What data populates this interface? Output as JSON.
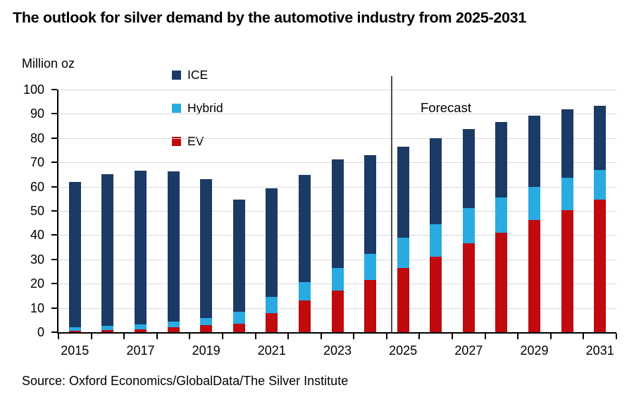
{
  "page": {
    "title": "The outlook for silver demand by the automotive industry from 2025-2031",
    "source": "Source: Oxford Economics/GlobalData/The Silver Institute"
  },
  "chart_data": {
    "type": "bar",
    "stacked": true,
    "title": "The outlook for silver demand by the automotive industry from 2025-2031",
    "unit_label": "Million oz",
    "xlabel": "",
    "ylabel": "Million oz",
    "ylim": [
      0,
      100
    ],
    "y_ticks": [
      0,
      10,
      20,
      30,
      40,
      50,
      60,
      70,
      80,
      90,
      100
    ],
    "grid": true,
    "legend_position": "inside-top-left",
    "categories": [
      "2015",
      "2016",
      "2017",
      "2018",
      "2019",
      "2020",
      "2021",
      "2022",
      "2023",
      "2024",
      "2025",
      "2026",
      "2027",
      "2028",
      "2029",
      "2030",
      "2031"
    ],
    "x_tick_labels": [
      "2015",
      "2017",
      "2019",
      "2021",
      "2023",
      "2025",
      "2027",
      "2029",
      "2031"
    ],
    "forecast_label": "Forecast",
    "forecast_start_category": "2025",
    "legend": [
      {
        "label": "ICE",
        "color": "#1C3A66"
      },
      {
        "label": "Hybrid",
        "color": "#29ABE2"
      },
      {
        "label": "EV",
        "color": "#C00A0E"
      }
    ],
    "stack_order_bottom_to_top": [
      "EV",
      "Hybrid",
      "ICE"
    ],
    "series": [
      {
        "name": "EV",
        "color": "#C00A0E",
        "values": [
          0.7,
          1.0,
          1.3,
          2.0,
          2.8,
          3.6,
          7.8,
          13.0,
          17.2,
          21.6,
          26.6,
          31.1,
          36.7,
          41.1,
          46.2,
          50.4,
          54.8
        ]
      },
      {
        "name": "Hybrid",
        "color": "#29ABE2",
        "values": [
          1.3,
          1.5,
          1.8,
          2.5,
          3.0,
          4.7,
          6.8,
          7.6,
          9.3,
          10.6,
          12.5,
          13.3,
          14.5,
          14.3,
          13.7,
          13.4,
          12.1
        ]
      },
      {
        "name": "ICE",
        "color": "#1C3A66",
        "values": [
          60.0,
          62.5,
          63.4,
          61.7,
          57.2,
          46.4,
          44.6,
          44.4,
          44.7,
          40.9,
          37.4,
          35.5,
          32.6,
          31.1,
          29.5,
          28.0,
          26.5
        ]
      }
    ],
    "totals": [
      62.0,
      65.0,
      66.5,
      66.2,
      63.0,
      54.7,
      59.2,
      65.0,
      71.2,
      73.1,
      76.5,
      79.9,
      83.8,
      86.5,
      89.4,
      91.8,
      93.4
    ],
    "colors": {
      "grid": "#D9D9D9",
      "axis": "#000000",
      "divider": "#4A4A4A",
      "background": "#FFFFFF",
      "text": "#000000"
    }
  }
}
